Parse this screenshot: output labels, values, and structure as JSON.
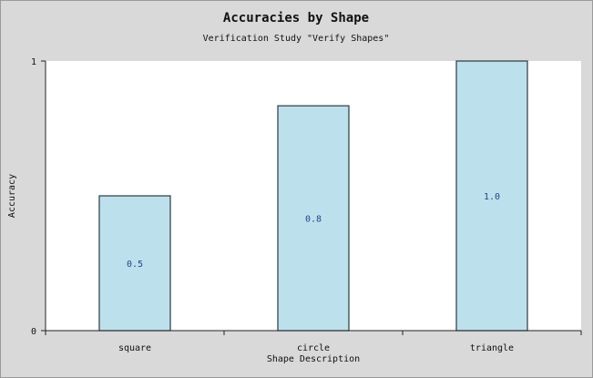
{
  "chart_data": {
    "type": "bar",
    "title": "Accuracies by Shape",
    "subtitle": "Verification Study \"Verify Shapes\"",
    "xlabel": "Shape Description",
    "ylabel": "Accuracy",
    "categories": [
      "square",
      "circle",
      "triangle"
    ],
    "values": [
      0.5,
      0.834,
      1.0
    ],
    "data_labels": [
      "0.5",
      "0.8",
      "1.0"
    ],
    "ylim": [
      0,
      1
    ],
    "yticks": [
      "0",
      "1"
    ],
    "grid": false,
    "legend": "none",
    "colors": {
      "bar_fill": "#bde1ec",
      "bar_stroke": "#2b3a40",
      "plot_bg": "#ffffff",
      "frame_bg": "#d9d9d9",
      "data_label": "#2a3f8f"
    }
  }
}
